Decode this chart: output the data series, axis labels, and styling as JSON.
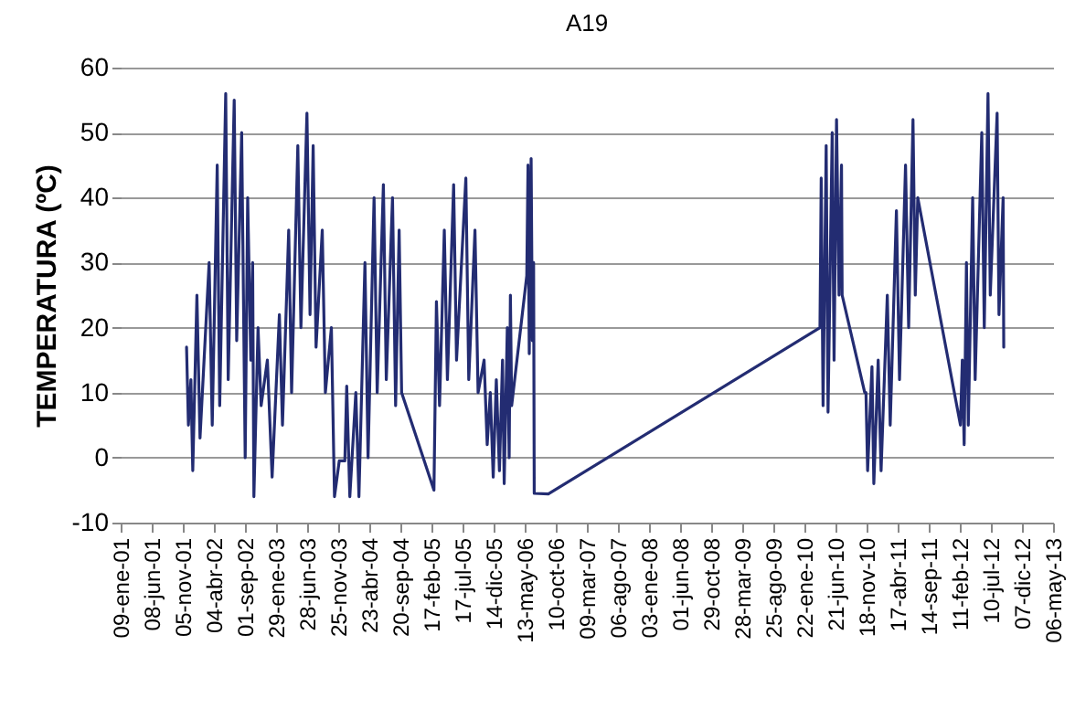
{
  "chart_data": {
    "type": "line",
    "title": "A19",
    "ylabel": "TEMPERATURA (ºC)",
    "xlim": [
      "2001-01-09",
      "2013-05-06"
    ],
    "xticks": [
      {
        "value": "2001-01-09",
        "label": "09-ene-01"
      },
      {
        "value": "2001-06-08",
        "label": "08-jun-01"
      },
      {
        "value": "2001-11-05",
        "label": "05-nov-01"
      },
      {
        "value": "2002-04-04",
        "label": "04-abr-02"
      },
      {
        "value": "2002-09-01",
        "label": "01-sep-02"
      },
      {
        "value": "2003-01-29",
        "label": "29-ene-03"
      },
      {
        "value": "2003-06-28",
        "label": "28-jun-03"
      },
      {
        "value": "2003-11-25",
        "label": "25-nov-03"
      },
      {
        "value": "2004-04-23",
        "label": "23-abr-04"
      },
      {
        "value": "2004-09-20",
        "label": "20-sep-04"
      },
      {
        "value": "2005-02-17",
        "label": "17-feb-05"
      },
      {
        "value": "2005-07-17",
        "label": "17-jul-05"
      },
      {
        "value": "2005-12-14",
        "label": "14-dic-05"
      },
      {
        "value": "2006-05-13",
        "label": "13-may-06"
      },
      {
        "value": "2006-10-10",
        "label": "10-oct-06"
      },
      {
        "value": "2007-03-09",
        "label": "09-mar-07"
      },
      {
        "value": "2007-08-06",
        "label": "06-ago-07"
      },
      {
        "value": "2008-01-03",
        "label": "03-ene-08"
      },
      {
        "value": "2008-06-01",
        "label": "01-jun-08"
      },
      {
        "value": "2008-10-29",
        "label": "29-oct-08"
      },
      {
        "value": "2009-03-28",
        "label": "28-mar-09"
      },
      {
        "value": "2009-08-25",
        "label": "25-ago-09"
      },
      {
        "value": "2010-01-22",
        "label": "22-ene-10"
      },
      {
        "value": "2010-06-21",
        "label": "21-jun-10"
      },
      {
        "value": "2010-11-18",
        "label": "18-nov-10"
      },
      {
        "value": "2011-04-17",
        "label": "17-abr-11"
      },
      {
        "value": "2011-09-14",
        "label": "14-sep-11"
      },
      {
        "value": "2012-02-11",
        "label": "11-feb-12"
      },
      {
        "value": "2012-07-10",
        "label": "10-jul-12"
      },
      {
        "value": "2012-12-07",
        "label": "07-dic-12"
      },
      {
        "value": "2013-05-06",
        "label": "06-may-13"
      }
    ],
    "ylim": [
      -10,
      60
    ],
    "yticks": [
      -10,
      0,
      10,
      20,
      30,
      40,
      50,
      60
    ],
    "grid": "y",
    "marker": "none",
    "line_style": "solid",
    "series": [
      {
        "color": "#232c72",
        "x": [
          "2001-11-23",
          "2001-12-02",
          "2001-12-14",
          "2001-12-23",
          "2002-01-12",
          "2002-01-27",
          "2002-03-12",
          "2002-03-27",
          "2002-04-20",
          "2002-05-02",
          "2002-05-31",
          "2002-06-12",
          "2002-07-11",
          "2002-07-23",
          "2002-08-16",
          "2002-09-02",
          "2002-09-14",
          "2002-09-29",
          "2002-10-08",
          "2002-10-14",
          "2002-11-03",
          "2002-11-18",
          "2002-12-18",
          "2003-01-10",
          "2003-02-14",
          "2003-03-01",
          "2003-03-31",
          "2003-04-14",
          "2003-05-14",
          "2003-05-29",
          "2003-06-27",
          "2003-07-12",
          "2003-07-27",
          "2003-08-10",
          "2003-09-09",
          "2003-09-24",
          "2003-10-23",
          "2003-11-07",
          "2003-11-30",
          "2003-12-27",
          "2004-01-05",
          "2004-01-20",
          "2004-02-18",
          "2004-03-04",
          "2004-04-02",
          "2004-04-17",
          "2004-05-16",
          "2004-05-31",
          "2004-06-30",
          "2004-07-14",
          "2004-08-13",
          "2004-08-28",
          "2004-09-14",
          "2004-09-26",
          "2005-03-01",
          "2005-03-13",
          "2005-03-28",
          "2005-04-20",
          "2005-05-05",
          "2005-06-04",
          "2005-06-18",
          "2005-08-02",
          "2005-08-16",
          "2005-09-15",
          "2005-09-30",
          "2005-10-29",
          "2005-11-13",
          "2005-11-28",
          "2005-12-12",
          "2005-12-27",
          "2006-01-11",
          "2006-01-26",
          "2006-02-03",
          "2006-02-18",
          "2006-02-27",
          "2006-03-05",
          "2006-03-11",
          "2006-05-23",
          "2006-05-29",
          "2006-06-04",
          "2006-06-13",
          "2006-06-19",
          "2006-06-25",
          "2006-06-28",
          "2006-09-04",
          "2010-04-07",
          "2010-04-13",
          "2010-04-22",
          "2010-05-07",
          "2010-05-16",
          "2010-06-05",
          "2010-06-14",
          "2010-06-26",
          "2010-07-08",
          "2010-07-20",
          "2010-07-23",
          "2010-11-09",
          "2010-11-15",
          "2010-11-23",
          "2010-12-14",
          "2010-12-23",
          "2011-01-13",
          "2011-01-27",
          "2011-02-26",
          "2011-03-12",
          "2011-04-11",
          "2011-04-26",
          "2011-05-25",
          "2011-06-09",
          "2011-06-30",
          "2011-07-11",
          "2011-07-23",
          "2012-02-14",
          "2012-02-23",
          "2012-03-03",
          "2012-03-14",
          "2012-03-23",
          "2012-04-13",
          "2012-04-25",
          "2012-05-27",
          "2012-06-08",
          "2012-06-26",
          "2012-07-07",
          "2012-08-09",
          "2012-08-18",
          "2012-09-07",
          "2012-09-10"
        ],
        "values": [
          17,
          5,
          12,
          -2,
          25,
          3,
          30,
          5,
          45,
          8,
          56,
          12,
          55,
          18,
          50,
          0,
          40,
          15,
          30,
          -6,
          20,
          8,
          15,
          -3,
          22,
          5,
          35,
          10,
          48,
          20,
          53,
          22,
          48,
          17,
          35,
          10,
          20,
          -6,
          -0.5,
          -0.5,
          11,
          -6,
          10,
          -6,
          30,
          0,
          40,
          10,
          42,
          12,
          40,
          8,
          35,
          10,
          -5,
          24,
          8,
          35,
          12,
          42,
          15,
          43,
          12,
          35,
          10,
          15,
          2,
          10,
          -3,
          12,
          -2,
          15,
          -4,
          20,
          0,
          25,
          8,
          28,
          45,
          16,
          46,
          18,
          30,
          -5.5,
          -5.6,
          20,
          43,
          8,
          48,
          7,
          50,
          15,
          52,
          25,
          45,
          25,
          10,
          10,
          -2,
          14,
          -4,
          15,
          -2,
          25,
          5,
          38,
          12,
          45,
          20,
          52,
          25,
          40,
          5,
          15,
          2,
          30,
          5,
          40,
          12,
          50,
          20,
          56,
          25,
          53,
          22,
          40,
          17
        ]
      }
    ]
  }
}
